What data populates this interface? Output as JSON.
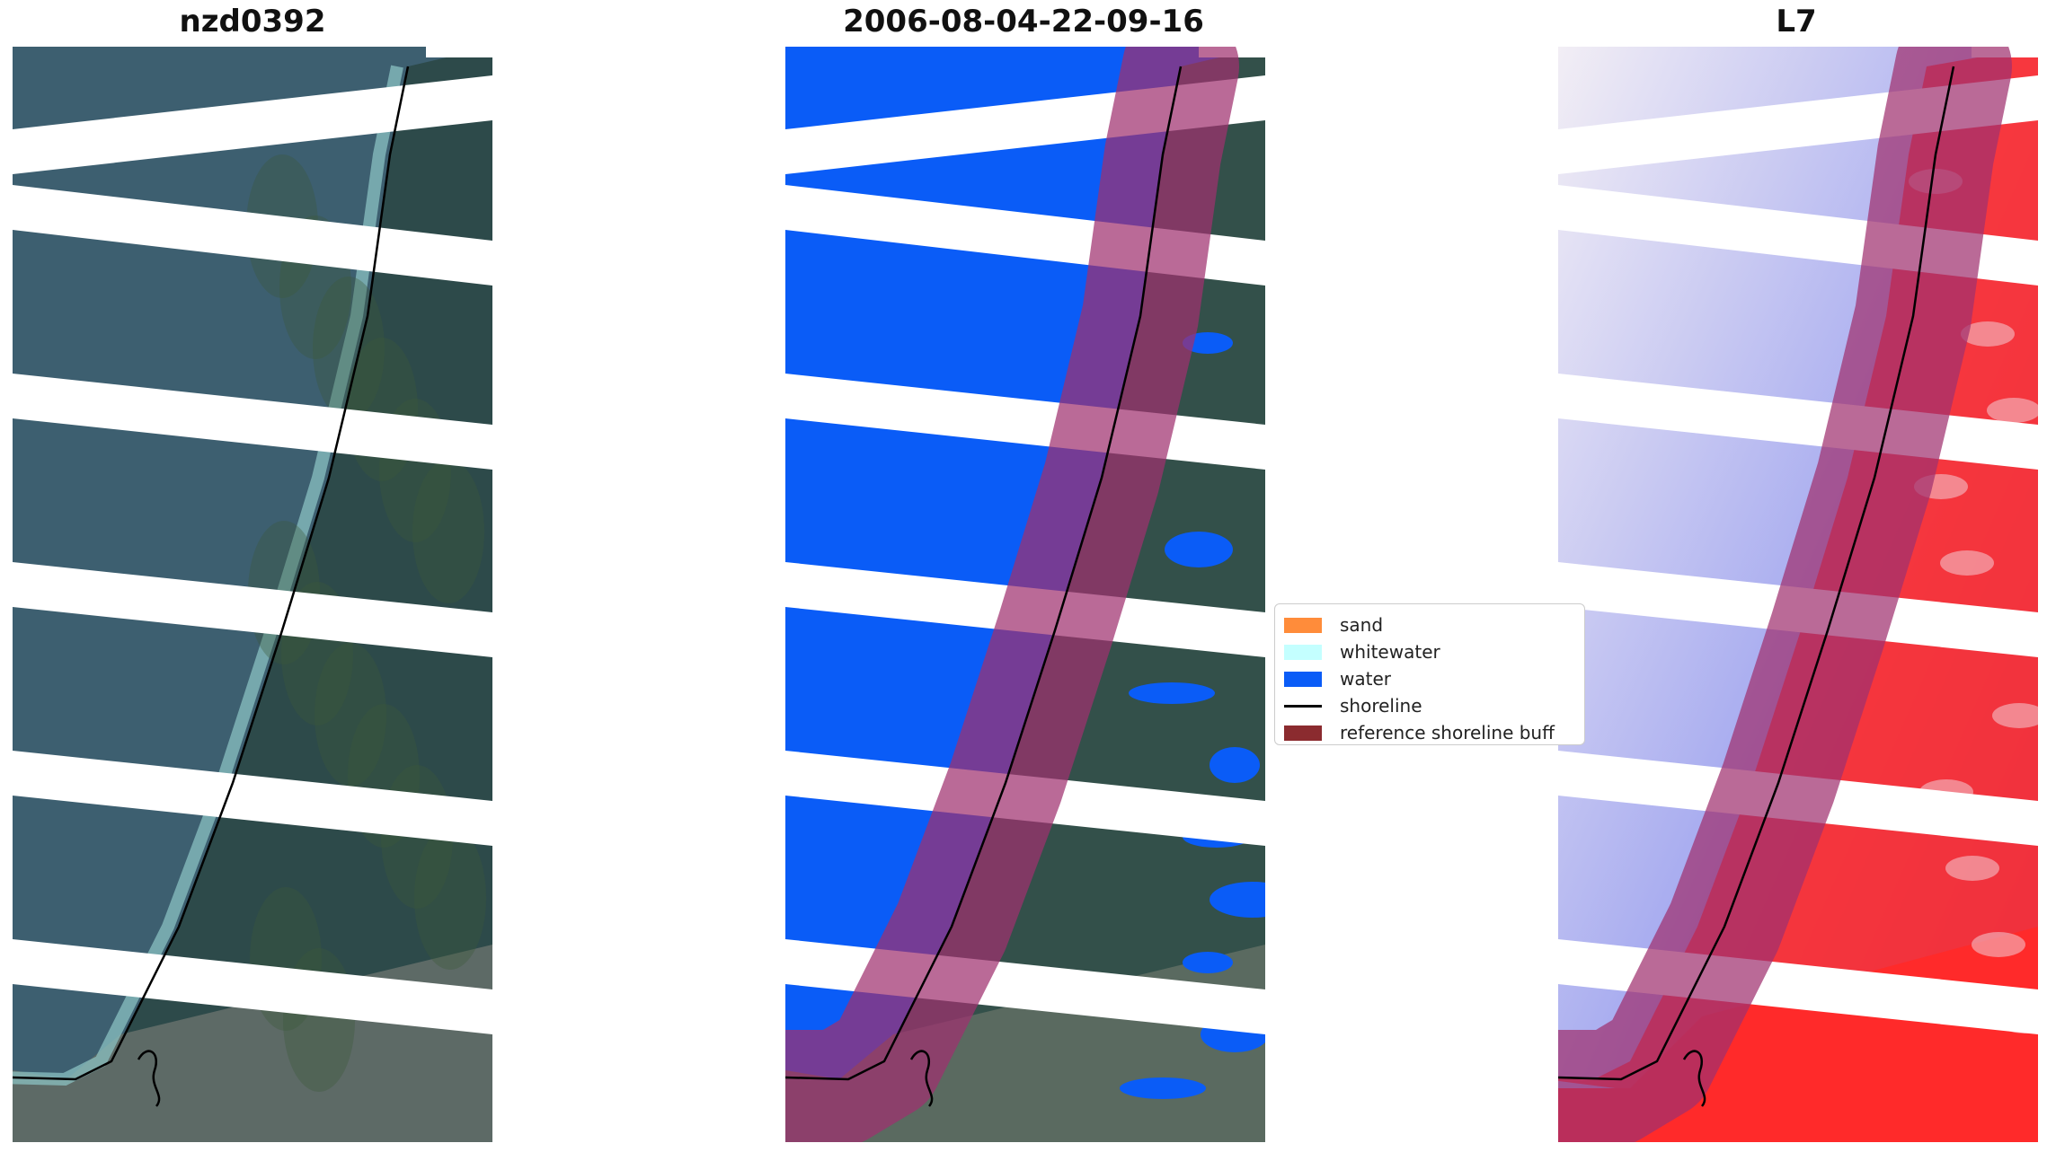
{
  "panels": {
    "rgb": {
      "title": "nzd0392"
    },
    "classified": {
      "title": "2006-08-04-22-09-16"
    },
    "index": {
      "title": "L7"
    }
  },
  "legend": {
    "items": [
      {
        "label": "sand",
        "color": "#ff8c3a",
        "kind": "patch"
      },
      {
        "label": "whitewater",
        "color": "#c4ffff",
        "kind": "patch"
      },
      {
        "label": "water",
        "color": "#0a5cf7",
        "kind": "patch"
      },
      {
        "label": "shoreline",
        "color": "#000000",
        "kind": "line"
      },
      {
        "label": "reference shoreline buff",
        "color": "#8b2b2f",
        "kind": "patch"
      }
    ]
  },
  "colors": {
    "water_class": "#0a5cf7",
    "buffer_overlay": "#a0306f",
    "ocean_rgb": "#3d5f70",
    "land_rgb": "#2d4a4a",
    "surf": "#8fc7c8",
    "index_positive": "#ff2a2a",
    "index_negative": "#5560e0"
  }
}
